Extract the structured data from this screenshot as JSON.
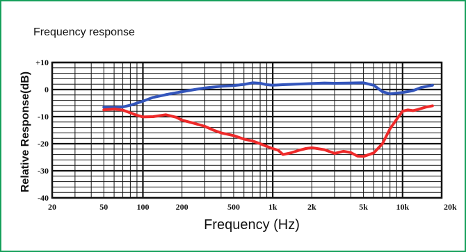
{
  "frame_color": "#16a05b",
  "chart_data": {
    "type": "line",
    "title": "Frequency response",
    "xlabel": "Frequency (Hz)",
    "ylabel": "Relative Response(dB)",
    "xscale": "log",
    "xlim": [
      20,
      20000
    ],
    "ylim": [
      -40,
      10
    ],
    "grid": true,
    "legend": "none",
    "x_ticks": [
      {
        "value": 20,
        "label": "20"
      },
      {
        "value": 50,
        "label": "50"
      },
      {
        "value": 100,
        "label": "100"
      },
      {
        "value": 200,
        "label": "200"
      },
      {
        "value": 500,
        "label": "500"
      },
      {
        "value": 1000,
        "label": "1k"
      },
      {
        "value": 2000,
        "label": "2k"
      },
      {
        "value": 5000,
        "label": "5k"
      },
      {
        "value": 10000,
        "label": "10k"
      },
      {
        "value": 20000,
        "label": "20k"
      }
    ],
    "y_ticks": [
      {
        "value": 10,
        "label": "+10"
      },
      {
        "value": 0,
        "label": "0"
      },
      {
        "value": -10,
        "label": "-10"
      },
      {
        "value": -20,
        "label": "-20"
      },
      {
        "value": -30,
        "label": "-30"
      },
      {
        "value": -40,
        "label": "-40"
      }
    ],
    "series": [
      {
        "color": "#3355bb",
        "points": [
          [
            50,
            -6.5
          ],
          [
            60,
            -6.6
          ],
          [
            70,
            -6.4
          ],
          [
            80,
            -5.8
          ],
          [
            90,
            -5.0
          ],
          [
            100,
            -4.3
          ],
          [
            120,
            -2.9
          ],
          [
            150,
            -1.9
          ],
          [
            200,
            -0.8
          ],
          [
            250,
            0.0
          ],
          [
            300,
            0.6
          ],
          [
            400,
            1.2
          ],
          [
            500,
            1.5
          ],
          [
            600,
            1.9
          ],
          [
            700,
            2.5
          ],
          [
            800,
            2.3
          ],
          [
            900,
            1.8
          ],
          [
            1000,
            1.6
          ],
          [
            1200,
            1.8
          ],
          [
            1500,
            2.0
          ],
          [
            2000,
            2.2
          ],
          [
            2500,
            2.4
          ],
          [
            3000,
            2.3
          ],
          [
            4000,
            2.4
          ],
          [
            5000,
            2.5
          ],
          [
            6000,
            1.6
          ],
          [
            7000,
            -0.8
          ],
          [
            8000,
            -1.6
          ],
          [
            9000,
            -1.3
          ],
          [
            10000,
            -1.1
          ],
          [
            12000,
            -0.4
          ],
          [
            14000,
            0.8
          ],
          [
            17000,
            1.6
          ]
        ]
      },
      {
        "color": "#ee2a2a",
        "points": [
          [
            50,
            -7.5
          ],
          [
            60,
            -7.2
          ],
          [
            70,
            -7.6
          ],
          [
            80,
            -8.6
          ],
          [
            90,
            -9.5
          ],
          [
            100,
            -10.1
          ],
          [
            120,
            -10.0
          ],
          [
            150,
            -9.3
          ],
          [
            180,
            -10.2
          ],
          [
            200,
            -11.3
          ],
          [
            250,
            -12.5
          ],
          [
            300,
            -13.6
          ],
          [
            350,
            -15.0
          ],
          [
            400,
            -16.0
          ],
          [
            500,
            -17.0
          ],
          [
            600,
            -18.3
          ],
          [
            700,
            -19.0
          ],
          [
            800,
            -20.0
          ],
          [
            900,
            -21.0
          ],
          [
            1000,
            -21.8
          ],
          [
            1100,
            -22.4
          ],
          [
            1200,
            -24.0
          ],
          [
            1400,
            -23.3
          ],
          [
            1600,
            -22.4
          ],
          [
            1800,
            -21.8
          ],
          [
            2000,
            -21.5
          ],
          [
            2500,
            -22.2
          ],
          [
            3000,
            -23.6
          ],
          [
            3500,
            -22.8
          ],
          [
            4000,
            -23.3
          ],
          [
            4500,
            -24.6
          ],
          [
            5000,
            -24.7
          ],
          [
            6000,
            -23.4
          ],
          [
            7000,
            -20.0
          ],
          [
            8000,
            -14.5
          ],
          [
            9000,
            -11.0
          ],
          [
            10000,
            -8.0
          ],
          [
            11000,
            -7.5
          ],
          [
            12000,
            -7.8
          ],
          [
            13000,
            -7.4
          ],
          [
            15000,
            -6.5
          ],
          [
            17000,
            -6.0
          ]
        ]
      }
    ]
  }
}
